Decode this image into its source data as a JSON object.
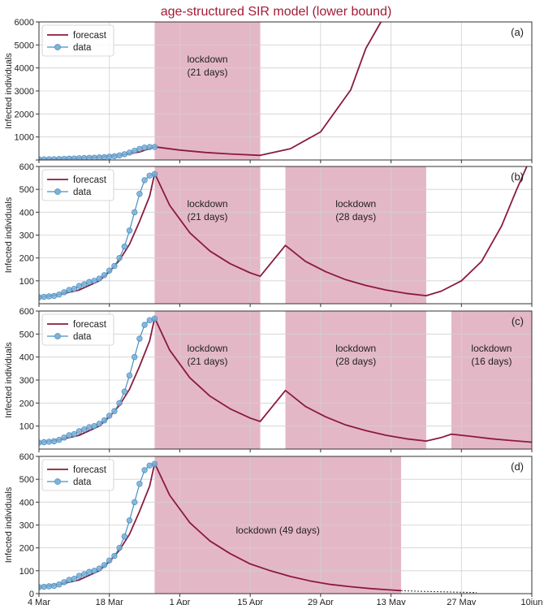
{
  "figure": {
    "title": "age-structured SIR model (lower bound)",
    "title_color": "#a31b36"
  },
  "colors": {
    "forecast": "#8b1a3e",
    "data_fill": "#7fb2d6",
    "data_edge": "#4a90c2",
    "lockdown": "#d48aa5",
    "grid": "#d0d0d0"
  },
  "x_axis": {
    "ticks": [
      {
        "day": 0,
        "label": "4 Mar"
      },
      {
        "day": 14,
        "label": "18 Mar"
      },
      {
        "day": 28,
        "label": "1 Apr"
      },
      {
        "day": 42,
        "label": "15 Apr"
      },
      {
        "day": 56,
        "label": "29 Apr"
      },
      {
        "day": 70,
        "label": "13 May"
      },
      {
        "day": 84,
        "label": "27 May"
      },
      {
        "day": 98,
        "label": "10jun"
      }
    ],
    "range": [
      0,
      98
    ]
  },
  "chart_data": [
    {
      "type": "line",
      "panel_label": "(a)",
      "ylabel": "Infected individuals",
      "ylim": [
        0,
        6000
      ],
      "yticks": [
        0,
        1000,
        2000,
        3000,
        4000,
        5000,
        6000
      ],
      "ytick_labels": [
        "",
        "1000",
        "2000",
        "3000",
        "4000",
        "5000",
        "6000"
      ],
      "legend": {
        "position": "top-left",
        "entries": [
          "forecast",
          "data"
        ]
      },
      "grid": true,
      "lockdowns": [
        {
          "start": 23,
          "end": 44,
          "label": [
            "lockdown",
            "(21 days)"
          ]
        }
      ],
      "series": [
        {
          "name": "forecast",
          "x": [
            0,
            4,
            8,
            12,
            16,
            20,
            23,
            28,
            33,
            38,
            44,
            50,
            56,
            62,
            65,
            68
          ],
          "y": [
            30,
            50,
            80,
            125,
            200,
            350,
            570,
            430,
            330,
            260,
            200,
            490,
            1220,
            3050,
            4850,
            6000
          ]
        },
        {
          "name": "data",
          "x": [
            0,
            1,
            2,
            3,
            4,
            5,
            6,
            7,
            8,
            9,
            10,
            11,
            12,
            13,
            14,
            15,
            16,
            17,
            18,
            19,
            20,
            21,
            22,
            23
          ],
          "y": [
            28,
            30,
            32,
            34,
            40,
            50,
            60,
            65,
            78,
            85,
            95,
            100,
            110,
            125,
            145,
            165,
            200,
            250,
            320,
            400,
            480,
            540,
            560,
            567
          ]
        }
      ]
    },
    {
      "type": "line",
      "panel_label": "(b)",
      "ylabel": "Infected individuals",
      "ylim": [
        0,
        600
      ],
      "yticks": [
        100,
        200,
        300,
        400,
        500,
        600
      ],
      "ytick_labels": [
        "100",
        "200",
        "300",
        "400",
        "500",
        "600"
      ],
      "legend": {
        "position": "top-left",
        "entries": [
          "forecast",
          "data"
        ]
      },
      "grid": true,
      "lockdowns": [
        {
          "start": 23,
          "end": 44,
          "label": [
            "lockdown",
            "(21 days)"
          ]
        },
        {
          "start": 49,
          "end": 77,
          "label": [
            "lockdown",
            "(28 days)"
          ]
        }
      ],
      "series": [
        {
          "name": "forecast",
          "x": [
            0,
            4,
            8,
            12,
            14,
            16,
            18,
            20,
            22,
            23,
            26,
            30,
            34,
            38,
            42,
            44,
            49,
            53,
            57,
            61,
            65,
            69,
            73,
            77,
            80,
            84,
            88,
            92,
            95,
            97
          ],
          "y": [
            28,
            40,
            60,
            100,
            140,
            190,
            260,
            360,
            470,
            570,
            430,
            310,
            230,
            175,
            135,
            120,
            255,
            185,
            140,
            105,
            80,
            60,
            45,
            35,
            55,
            100,
            185,
            340,
            500,
            600
          ]
        },
        {
          "name": "data",
          "x": [
            0,
            1,
            2,
            3,
            4,
            5,
            6,
            7,
            8,
            9,
            10,
            11,
            12,
            13,
            14,
            15,
            16,
            17,
            18,
            19,
            20,
            21,
            22,
            23
          ],
          "y": [
            28,
            30,
            32,
            34,
            40,
            50,
            60,
            65,
            78,
            85,
            95,
            100,
            110,
            125,
            145,
            165,
            200,
            250,
            320,
            400,
            480,
            540,
            560,
            567
          ]
        }
      ]
    },
    {
      "type": "line",
      "panel_label": "(c)",
      "ylabel": "Infected individuals",
      "ylim": [
        0,
        600
      ],
      "yticks": [
        100,
        200,
        300,
        400,
        500,
        600
      ],
      "ytick_labels": [
        "100",
        "200",
        "300",
        "400",
        "500",
        "600"
      ],
      "legend": {
        "position": "top-left",
        "entries": [
          "forecast",
          "data"
        ]
      },
      "grid": true,
      "lockdowns": [
        {
          "start": 23,
          "end": 44,
          "label": [
            "lockdown",
            "(21 days)"
          ]
        },
        {
          "start": 49,
          "end": 77,
          "label": [
            "lockdown",
            "(28 days)"
          ]
        },
        {
          "start": 82,
          "end": 98,
          "label": [
            "lockdown",
            "(16 days)"
          ]
        }
      ],
      "series": [
        {
          "name": "forecast",
          "x": [
            0,
            4,
            8,
            12,
            14,
            16,
            18,
            20,
            22,
            23,
            26,
            30,
            34,
            38,
            42,
            44,
            49,
            53,
            57,
            61,
            65,
            69,
            73,
            77,
            80,
            82,
            86,
            90,
            94,
            98
          ],
          "y": [
            28,
            40,
            60,
            100,
            140,
            190,
            260,
            360,
            470,
            570,
            430,
            310,
            230,
            175,
            135,
            120,
            255,
            185,
            140,
            105,
            80,
            60,
            45,
            35,
            50,
            65,
            55,
            45,
            37,
            30
          ]
        },
        {
          "name": "data",
          "x": [
            0,
            1,
            2,
            3,
            4,
            5,
            6,
            7,
            8,
            9,
            10,
            11,
            12,
            13,
            14,
            15,
            16,
            17,
            18,
            19,
            20,
            21,
            22,
            23
          ],
          "y": [
            28,
            30,
            32,
            34,
            40,
            50,
            60,
            65,
            78,
            85,
            95,
            100,
            110,
            125,
            145,
            165,
            200,
            250,
            320,
            400,
            480,
            540,
            560,
            567
          ]
        }
      ]
    },
    {
      "type": "line",
      "panel_label": "(d)",
      "ylabel": "Infected individuals",
      "ylim": [
        0,
        600
      ],
      "yticks": [
        0,
        100,
        200,
        300,
        400,
        500,
        600
      ],
      "ytick_labels": [
        "0",
        "100",
        "200",
        "300",
        "400",
        "500",
        "600"
      ],
      "legend": {
        "position": "top-left",
        "entries": [
          "forecast",
          "data"
        ]
      },
      "grid": true,
      "lockdowns": [
        {
          "start": 23,
          "end": 72,
          "label": [
            "lockdown (49 days)"
          ]
        }
      ],
      "series": [
        {
          "name": "forecast",
          "x": [
            0,
            4,
            8,
            12,
            14,
            16,
            18,
            20,
            22,
            23,
            26,
            30,
            34,
            38,
            42,
            46,
            50,
            54,
            58,
            62,
            66,
            70,
            72
          ],
          "y": [
            28,
            40,
            60,
            100,
            140,
            190,
            260,
            360,
            470,
            570,
            430,
            310,
            230,
            175,
            130,
            100,
            75,
            55,
            40,
            30,
            22,
            16,
            13
          ]
        },
        {
          "name": "forecast-dotted",
          "x": [
            72,
            76,
            80,
            84,
            87
          ],
          "y": [
            13,
            10,
            8,
            6,
            5
          ]
        },
        {
          "name": "data",
          "x": [
            0,
            1,
            2,
            3,
            4,
            5,
            6,
            7,
            8,
            9,
            10,
            11,
            12,
            13,
            14,
            15,
            16,
            17,
            18,
            19,
            20,
            21,
            22,
            23
          ],
          "y": [
            28,
            30,
            32,
            34,
            40,
            50,
            60,
            65,
            78,
            85,
            95,
            100,
            110,
            125,
            145,
            165,
            200,
            250,
            320,
            400,
            480,
            540,
            560,
            567
          ]
        }
      ]
    }
  ]
}
